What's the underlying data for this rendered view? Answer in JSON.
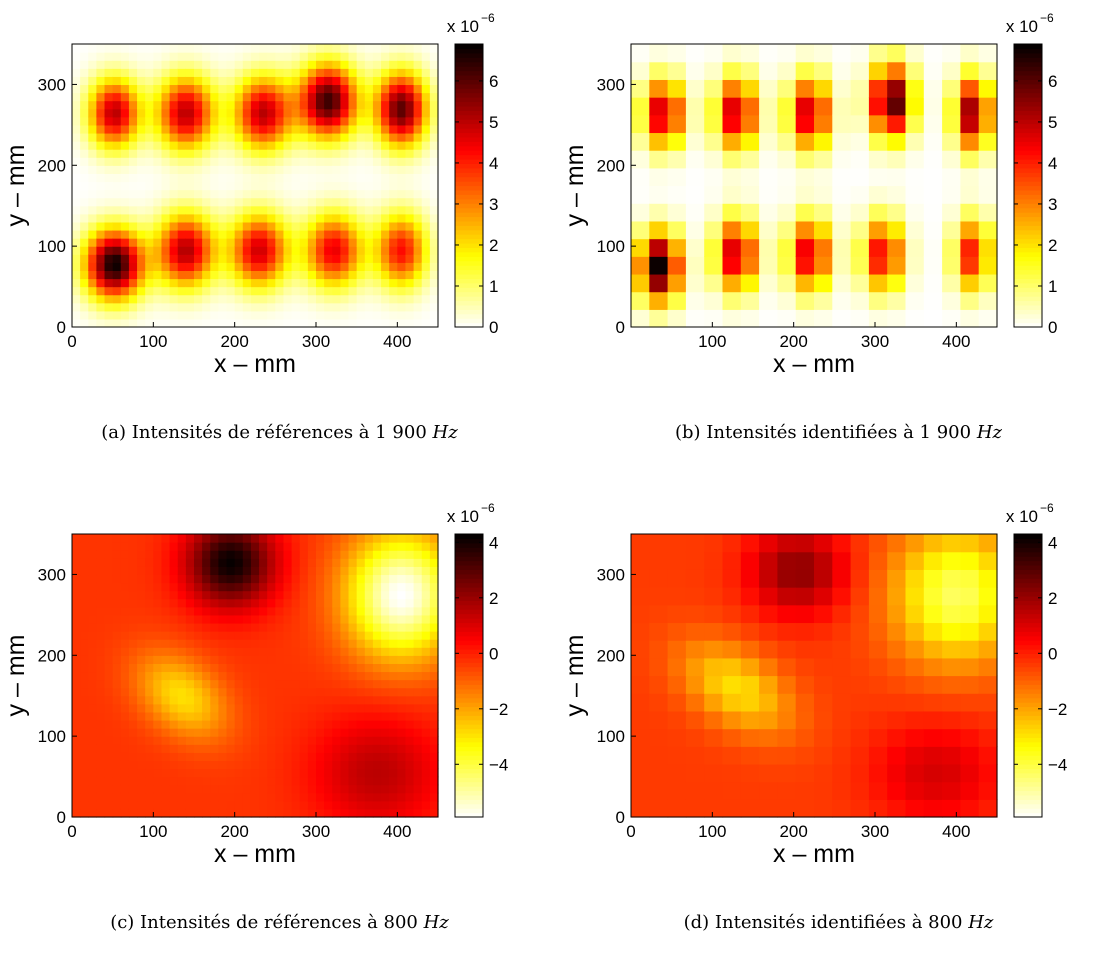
{
  "figure": {
    "panels": [
      {
        "caption": {
          "prefix": "(a) Intensités de références à 1 900 ",
          "unit": "Hz"
        },
        "colorbar": {
          "exponent_label": "x 10",
          "exponent": "−6"
        }
      },
      {
        "caption": {
          "prefix": "(b) Intensités identifiées à 1 900 ",
          "unit": "Hz"
        },
        "colorbar": {
          "exponent_label": "x 10",
          "exponent": "−6"
        }
      },
      {
        "caption": {
          "prefix": "(c) Intensités de références à 800 ",
          "unit": "Hz"
        },
        "colorbar": {
          "exponent_label": "x 10",
          "exponent": "−6"
        }
      },
      {
        "caption": {
          "prefix": "(d) Intensités identifiées à 800 ",
          "unit": "Hz"
        },
        "colorbar": {
          "exponent_label": "x 10",
          "exponent": "−6"
        }
      }
    ]
  },
  "chart_data": [
    {
      "type": "heatmap",
      "xlabel": "x  –  mm",
      "ylabel": "y  –  mm",
      "xlim": [
        0,
        450
      ],
      "ylim": [
        0,
        350
      ],
      "xticks": [
        0,
        100,
        200,
        300,
        400
      ],
      "yticks": [
        0,
        100,
        200,
        300
      ],
      "clim": [
        0,
        6.9
      ],
      "cticks": [
        0,
        1,
        2,
        3,
        4,
        5,
        6
      ],
      "colormap": "hot-reversed",
      "resolution": "smooth",
      "blobs": [
        {
          "x": 52,
          "y": 78,
          "amp": 6.8,
          "sx": 25,
          "sy": 30
        },
        {
          "x": 140,
          "y": 95,
          "amp": 5.1,
          "sx": 25,
          "sy": 32
        },
        {
          "x": 230,
          "y": 95,
          "amp": 4.8,
          "sx": 25,
          "sy": 32
        },
        {
          "x": 322,
          "y": 95,
          "amp": 4.5,
          "sx": 25,
          "sy": 32
        },
        {
          "x": 405,
          "y": 95,
          "amp": 4.2,
          "sx": 22,
          "sy": 32
        },
        {
          "x": 52,
          "y": 265,
          "amp": 5.0,
          "sx": 22,
          "sy": 30
        },
        {
          "x": 140,
          "y": 265,
          "amp": 5.0,
          "sx": 25,
          "sy": 32
        },
        {
          "x": 235,
          "y": 265,
          "amp": 5.0,
          "sx": 25,
          "sy": 32
        },
        {
          "x": 315,
          "y": 280,
          "amp": 6.3,
          "sx": 25,
          "sy": 32
        },
        {
          "x": 405,
          "y": 270,
          "amp": 6.0,
          "sx": 22,
          "sy": 32
        }
      ]
    },
    {
      "type": "heatmap",
      "xlabel": "x  –  mm",
      "ylabel": "y  –  mm",
      "xlim": [
        0,
        450
      ],
      "ylim": [
        0,
        350
      ],
      "xticks": [
        100,
        200,
        300,
        400
      ],
      "yticks": [
        0,
        100,
        200,
        300
      ],
      "clim": [
        0,
        6.9
      ],
      "cticks": [
        0,
        1,
        2,
        3,
        4,
        5,
        6
      ],
      "colormap": "hot-reversed",
      "resolution": "grid-20",
      "blobs": [
        {
          "x": 35,
          "y": 75,
          "amp": 6.8,
          "sx": 18,
          "sy": 30
        },
        {
          "x": 130,
          "y": 90,
          "amp": 5.0,
          "sx": 18,
          "sy": 32
        },
        {
          "x": 220,
          "y": 90,
          "amp": 4.8,
          "sx": 18,
          "sy": 32
        },
        {
          "x": 310,
          "y": 90,
          "amp": 4.5,
          "sx": 18,
          "sy": 32
        },
        {
          "x": 420,
          "y": 90,
          "amp": 4.2,
          "sx": 16,
          "sy": 32
        },
        {
          "x": 40,
          "y": 265,
          "amp": 5.0,
          "sx": 18,
          "sy": 30
        },
        {
          "x": 130,
          "y": 265,
          "amp": 5.0,
          "sx": 18,
          "sy": 32
        },
        {
          "x": 220,
          "y": 265,
          "amp": 5.0,
          "sx": 18,
          "sy": 32
        },
        {
          "x": 320,
          "y": 280,
          "amp": 6.4,
          "sx": 18,
          "sy": 32
        },
        {
          "x": 420,
          "y": 265,
          "amp": 5.5,
          "sx": 16,
          "sy": 32
        }
      ]
    },
    {
      "type": "heatmap",
      "xlabel": "x  –  mm",
      "ylabel": "y  –  mm",
      "xlim": [
        0,
        450
      ],
      "ylim": [
        0,
        350
      ],
      "xticks": [
        0,
        100,
        200,
        300,
        400
      ],
      "yticks": [
        0,
        100,
        200,
        300
      ],
      "clim": [
        -5.9,
        4.3
      ],
      "cticks": [
        -4,
        -2,
        0,
        2,
        4
      ],
      "colormap": "hot-reversed",
      "resolution": "smooth",
      "background": -0.3,
      "blobs": [
        {
          "x": 195,
          "y": 315,
          "amp": 4.5,
          "sx": 38,
          "sy": 38
        },
        {
          "x": 405,
          "y": 275,
          "amp": -5.6,
          "sx": 48,
          "sy": 55
        },
        {
          "x": 375,
          "y": 55,
          "amp": 1.8,
          "sx": 55,
          "sy": 50
        },
        {
          "x": 135,
          "y": 150,
          "amp": -2.6,
          "sx": 45,
          "sy": 30,
          "rot": -0.72
        }
      ]
    },
    {
      "type": "heatmap",
      "xlabel": "x  –  mm",
      "ylabel": "y  –  mm",
      "xlim": [
        0,
        450
      ],
      "ylim": [
        0,
        350
      ],
      "xticks": [
        0,
        100,
        200,
        300,
        400
      ],
      "yticks": [
        0,
        100,
        200,
        300
      ],
      "clim": [
        -5.9,
        4.3
      ],
      "cticks": [
        -4,
        -2,
        0,
        2,
        4
      ],
      "colormap": "hot-reversed",
      "resolution": "grid-20",
      "background": -0.4,
      "blobs": [
        {
          "x": 205,
          "y": 305,
          "amp": 2.6,
          "sx": 42,
          "sy": 38
        },
        {
          "x": 400,
          "y": 275,
          "amp": -3.9,
          "sx": 55,
          "sy": 60
        },
        {
          "x": 375,
          "y": 55,
          "amp": 1.5,
          "sx": 55,
          "sy": 45
        },
        {
          "x": 130,
          "y": 160,
          "amp": -2.5,
          "sx": 55,
          "sy": 32,
          "rot": -0.6
        }
      ]
    }
  ]
}
